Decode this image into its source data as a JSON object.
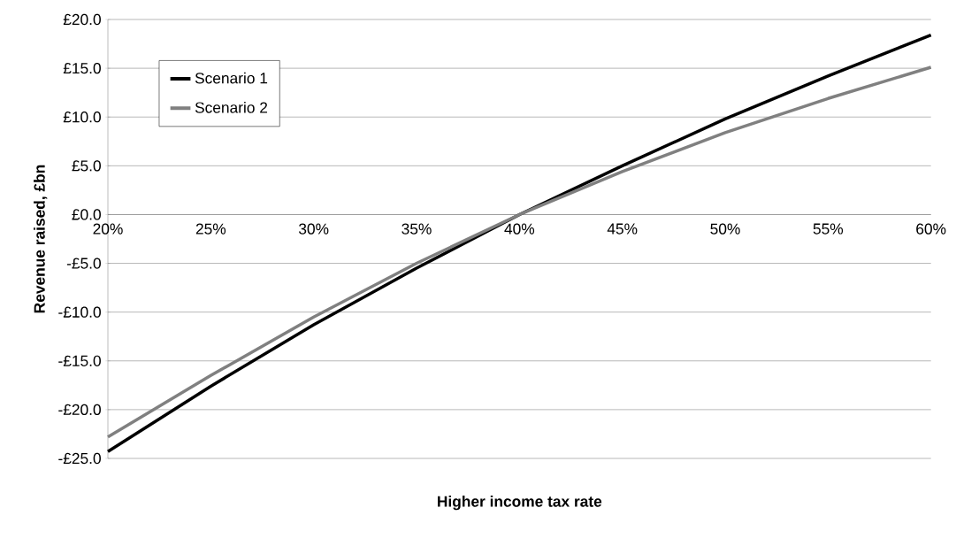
{
  "chart_data": {
    "type": "line",
    "xlabel": "Higher income tax rate",
    "ylabel": "Revenue raised, £bn",
    "x": [
      20,
      25,
      30,
      35,
      40,
      45,
      50,
      55,
      60
    ],
    "series": [
      {
        "name": "Scenario 1",
        "color": "#000000",
        "values": [
          -24.3,
          -17.6,
          -11.3,
          -5.5,
          0,
          5.0,
          9.8,
          14.2,
          18.4
        ]
      },
      {
        "name": "Scenario 2",
        "color": "#808080",
        "values": [
          -22.8,
          -16.5,
          -10.5,
          -5.0,
          0,
          4.4,
          8.4,
          11.9,
          15.1
        ]
      }
    ],
    "xlim": [
      20,
      60
    ],
    "xticks": [
      {
        "value": 20,
        "label": "20%"
      },
      {
        "value": 25,
        "label": "25%"
      },
      {
        "value": 30,
        "label": "30%"
      },
      {
        "value": 35,
        "label": "35%"
      },
      {
        "value": 40,
        "label": "40%"
      },
      {
        "value": 45,
        "label": "45%"
      },
      {
        "value": 50,
        "label": "50%"
      },
      {
        "value": 55,
        "label": "55%"
      },
      {
        "value": 60,
        "label": "60%"
      }
    ],
    "ylim": [
      -25,
      20
    ],
    "yticks": [
      {
        "value": -25,
        "label": "-£25.0"
      },
      {
        "value": -20,
        "label": "-£20.0"
      },
      {
        "value": -15,
        "label": "-£15.0"
      },
      {
        "value": -10,
        "label": "-£10.0"
      },
      {
        "value": -5,
        "label": "-£5.0"
      },
      {
        "value": 0,
        "label": "£0.0"
      },
      {
        "value": 5,
        "label": "£5.0"
      },
      {
        "value": 10,
        "label": "£10.0"
      },
      {
        "value": 15,
        "label": "£15.0"
      },
      {
        "value": 20,
        "label": "£20.0"
      }
    ],
    "grid": "y",
    "legend": "top left",
    "marker": "none",
    "line_style": "solid"
  }
}
